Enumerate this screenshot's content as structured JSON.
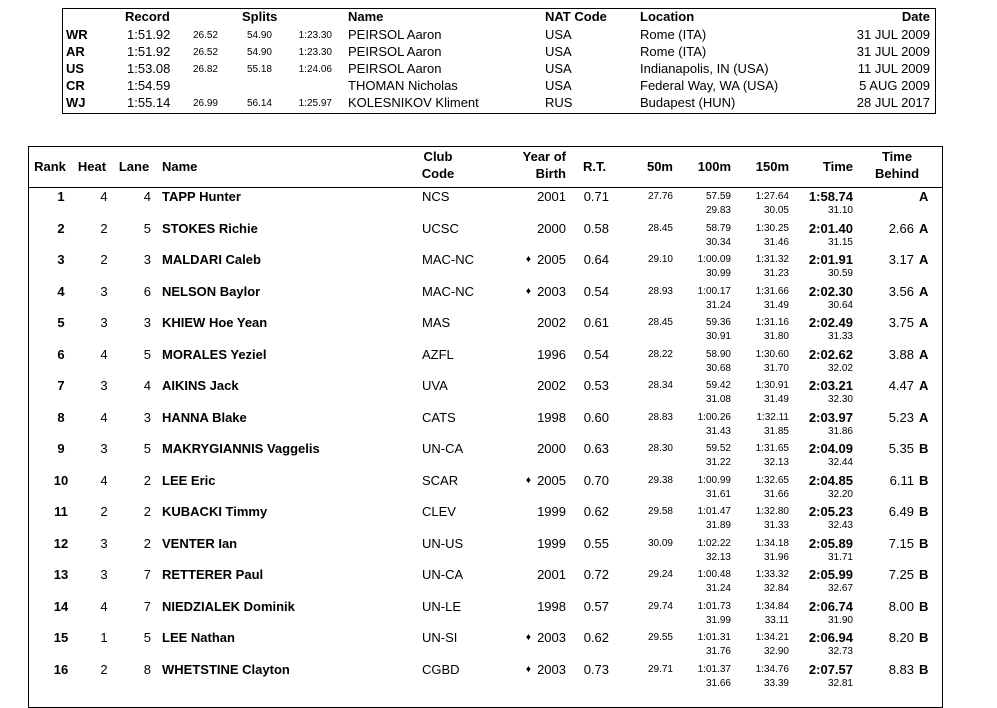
{
  "records": {
    "header": {
      "record": "Record",
      "splits": "Splits",
      "name": "Name",
      "nat": "NAT Code",
      "location": "Location",
      "date": "Date"
    },
    "rows": [
      {
        "code": "WR",
        "time": "1:51.92",
        "splits": [
          "26.52",
          "54.90",
          "1:23.30"
        ],
        "name": "PEIRSOL Aaron",
        "nat": "USA",
        "location": "Rome (ITA)",
        "date": "31 JUL 2009"
      },
      {
        "code": "AR",
        "time": "1:51.92",
        "splits": [
          "26.52",
          "54.90",
          "1:23.30"
        ],
        "name": "PEIRSOL Aaron",
        "nat": "USA",
        "location": "Rome (ITA)",
        "date": "31 JUL 2009"
      },
      {
        "code": "US",
        "time": "1:53.08",
        "splits": [
          "26.82",
          "55.18",
          "1:24.06"
        ],
        "name": "PEIRSOL Aaron",
        "nat": "USA",
        "location": "Indianapolis, IN (USA)",
        "date": "11 JUL 2009"
      },
      {
        "code": "CR",
        "time": "1:54.59",
        "splits": [
          null,
          null,
          null
        ],
        "name": "THOMAN Nicholas",
        "nat": "USA",
        "location": "Federal Way, WA (USA)",
        "date": "5 AUG 2009"
      },
      {
        "code": "WJ",
        "time": "1:55.14",
        "splits": [
          "26.99",
          "56.14",
          "1:25.97"
        ],
        "name": "KOLESNIKOV Kliment",
        "nat": "RUS",
        "location": "Budapest (HUN)",
        "date": "28 JUL 2017"
      }
    ]
  },
  "results": {
    "header": {
      "rank": "Rank",
      "heat": "Heat",
      "lane": "Lane",
      "name": "Name",
      "club": [
        "Club",
        "Code"
      ],
      "yob": [
        "Year of",
        "Birth"
      ],
      "rt": "R.T.",
      "s50": "50m",
      "s100": "100m",
      "s150": "150m",
      "time": "Time",
      "behind": [
        "Time",
        "Behind"
      ]
    },
    "rows": [
      {
        "rank": "1",
        "heat": "4",
        "lane": "4",
        "name": "TAPP Hunter",
        "club": "NCS",
        "mark": null,
        "yob": "2001",
        "rt": "0.71",
        "s50": "27.76",
        "s100": "57.59",
        "s150": "1:27.64",
        "time": "1:58.74",
        "behind": null,
        "qual": "A",
        "splits": [
          "29.83",
          "30.05",
          "31.10"
        ]
      },
      {
        "rank": "2",
        "heat": "2",
        "lane": "5",
        "name": "STOKES Richie",
        "club": "UCSC",
        "mark": null,
        "yob": "2000",
        "rt": "0.58",
        "s50": "28.45",
        "s100": "58.79",
        "s150": "1:30.25",
        "time": "2:01.40",
        "behind": "2.66",
        "qual": "A",
        "splits": [
          "30.34",
          "31.46",
          "31.15"
        ]
      },
      {
        "rank": "3",
        "heat": "2",
        "lane": "3",
        "name": "MALDARI Caleb",
        "club": "MAC-NC",
        "mark": "♦",
        "yob": "2005",
        "rt": "0.64",
        "s50": "29.10",
        "s100": "1:00.09",
        "s150": "1:31.32",
        "time": "2:01.91",
        "behind": "3.17",
        "qual": "A",
        "splits": [
          "30.99",
          "31.23",
          "30.59"
        ]
      },
      {
        "rank": "4",
        "heat": "3",
        "lane": "6",
        "name": "NELSON Baylor",
        "club": "MAC-NC",
        "mark": "♦",
        "yob": "2003",
        "rt": "0.54",
        "s50": "28.93",
        "s100": "1:00.17",
        "s150": "1:31.66",
        "time": "2:02.30",
        "behind": "3.56",
        "qual": "A",
        "splits": [
          "31.24",
          "31.49",
          "30.64"
        ]
      },
      {
        "rank": "5",
        "heat": "3",
        "lane": "3",
        "name": "KHIEW Hoe Yean",
        "club": "MAS",
        "mark": null,
        "yob": "2002",
        "rt": "0.61",
        "s50": "28.45",
        "s100": "59.36",
        "s150": "1:31.16",
        "time": "2:02.49",
        "behind": "3.75",
        "qual": "A",
        "splits": [
          "30.91",
          "31.80",
          "31.33"
        ]
      },
      {
        "rank": "6",
        "heat": "4",
        "lane": "5",
        "name": "MORALES Yeziel",
        "club": "AZFL",
        "mark": null,
        "yob": "1996",
        "rt": "0.54",
        "s50": "28.22",
        "s100": "58.90",
        "s150": "1:30.60",
        "time": "2:02.62",
        "behind": "3.88",
        "qual": "A",
        "splits": [
          "30.68",
          "31.70",
          "32.02"
        ]
      },
      {
        "rank": "7",
        "heat": "3",
        "lane": "4",
        "name": "AIKINS Jack",
        "club": "UVA",
        "mark": null,
        "yob": "2002",
        "rt": "0.53",
        "s50": "28.34",
        "s100": "59.42",
        "s150": "1:30.91",
        "time": "2:03.21",
        "behind": "4.47",
        "qual": "A",
        "splits": [
          "31.08",
          "31.49",
          "32.30"
        ]
      },
      {
        "rank": "8",
        "heat": "4",
        "lane": "3",
        "name": "HANNA Blake",
        "club": "CATS",
        "mark": null,
        "yob": "1998",
        "rt": "0.60",
        "s50": "28.83",
        "s100": "1:00.26",
        "s150": "1:32.11",
        "time": "2:03.97",
        "behind": "5.23",
        "qual": "A",
        "splits": [
          "31.43",
          "31.85",
          "31.86"
        ]
      },
      {
        "rank": "9",
        "heat": "3",
        "lane": "5",
        "name": "MAKRYGIANNIS Vaggelis",
        "club": "UN-CA",
        "mark": null,
        "yob": "2000",
        "rt": "0.63",
        "s50": "28.30",
        "s100": "59.52",
        "s150": "1:31.65",
        "time": "2:04.09",
        "behind": "5.35",
        "qual": "B",
        "splits": [
          "31.22",
          "32.13",
          "32.44"
        ]
      },
      {
        "rank": "10",
        "heat": "4",
        "lane": "2",
        "name": "LEE Eric",
        "club": "SCAR",
        "mark": "♦",
        "yob": "2005",
        "rt": "0.70",
        "s50": "29.38",
        "s100": "1:00.99",
        "s150": "1:32.65",
        "time": "2:04.85",
        "behind": "6.11",
        "qual": "B",
        "splits": [
          "31.61",
          "31.66",
          "32.20"
        ]
      },
      {
        "rank": "11",
        "heat": "2",
        "lane": "2",
        "name": "KUBACKI Timmy",
        "club": "CLEV",
        "mark": null,
        "yob": "1999",
        "rt": "0.62",
        "s50": "29.58",
        "s100": "1:01.47",
        "s150": "1:32.80",
        "time": "2:05.23",
        "behind": "6.49",
        "qual": "B",
        "splits": [
          "31.89",
          "31.33",
          "32.43"
        ]
      },
      {
        "rank": "12",
        "heat": "3",
        "lane": "2",
        "name": "VENTER Ian",
        "club": "UN-US",
        "mark": null,
        "yob": "1999",
        "rt": "0.55",
        "s50": "30.09",
        "s100": "1:02.22",
        "s150": "1:34.18",
        "time": "2:05.89",
        "behind": "7.15",
        "qual": "B",
        "splits": [
          "32.13",
          "31.96",
          "31.71"
        ]
      },
      {
        "rank": "13",
        "heat": "3",
        "lane": "7",
        "name": "RETTERER Paul",
        "club": "UN-CA",
        "mark": null,
        "yob": "2001",
        "rt": "0.72",
        "s50": "29.24",
        "s100": "1:00.48",
        "s150": "1:33.32",
        "time": "2:05.99",
        "behind": "7.25",
        "qual": "B",
        "splits": [
          "31.24",
          "32.84",
          "32.67"
        ]
      },
      {
        "rank": "14",
        "heat": "4",
        "lane": "7",
        "name": "NIEDZIALEK Dominik",
        "club": "UN-LE",
        "mark": null,
        "yob": "1998",
        "rt": "0.57",
        "s50": "29.74",
        "s100": "1:01.73",
        "s150": "1:34.84",
        "time": "2:06.74",
        "behind": "8.00",
        "qual": "B",
        "splits": [
          "31.99",
          "33.11",
          "31.90"
        ]
      },
      {
        "rank": "15",
        "heat": "1",
        "lane": "5",
        "name": "LEE Nathan",
        "club": "UN-SI",
        "mark": "♦",
        "yob": "2003",
        "rt": "0.62",
        "s50": "29.55",
        "s100": "1:01.31",
        "s150": "1:34.21",
        "time": "2:06.94",
        "behind": "8.20",
        "qual": "B",
        "splits": [
          "31.76",
          "32.90",
          "32.73"
        ]
      },
      {
        "rank": "16",
        "heat": "2",
        "lane": "8",
        "name": "WHETSTINE Clayton",
        "club": "CGBD",
        "mark": "♦",
        "yob": "2003",
        "rt": "0.73",
        "s50": "29.71",
        "s100": "1:01.37",
        "s150": "1:34.76",
        "time": "2:07.57",
        "behind": "8.83",
        "qual": "B",
        "splits": [
          "31.66",
          "33.39",
          "32.81"
        ]
      }
    ]
  }
}
